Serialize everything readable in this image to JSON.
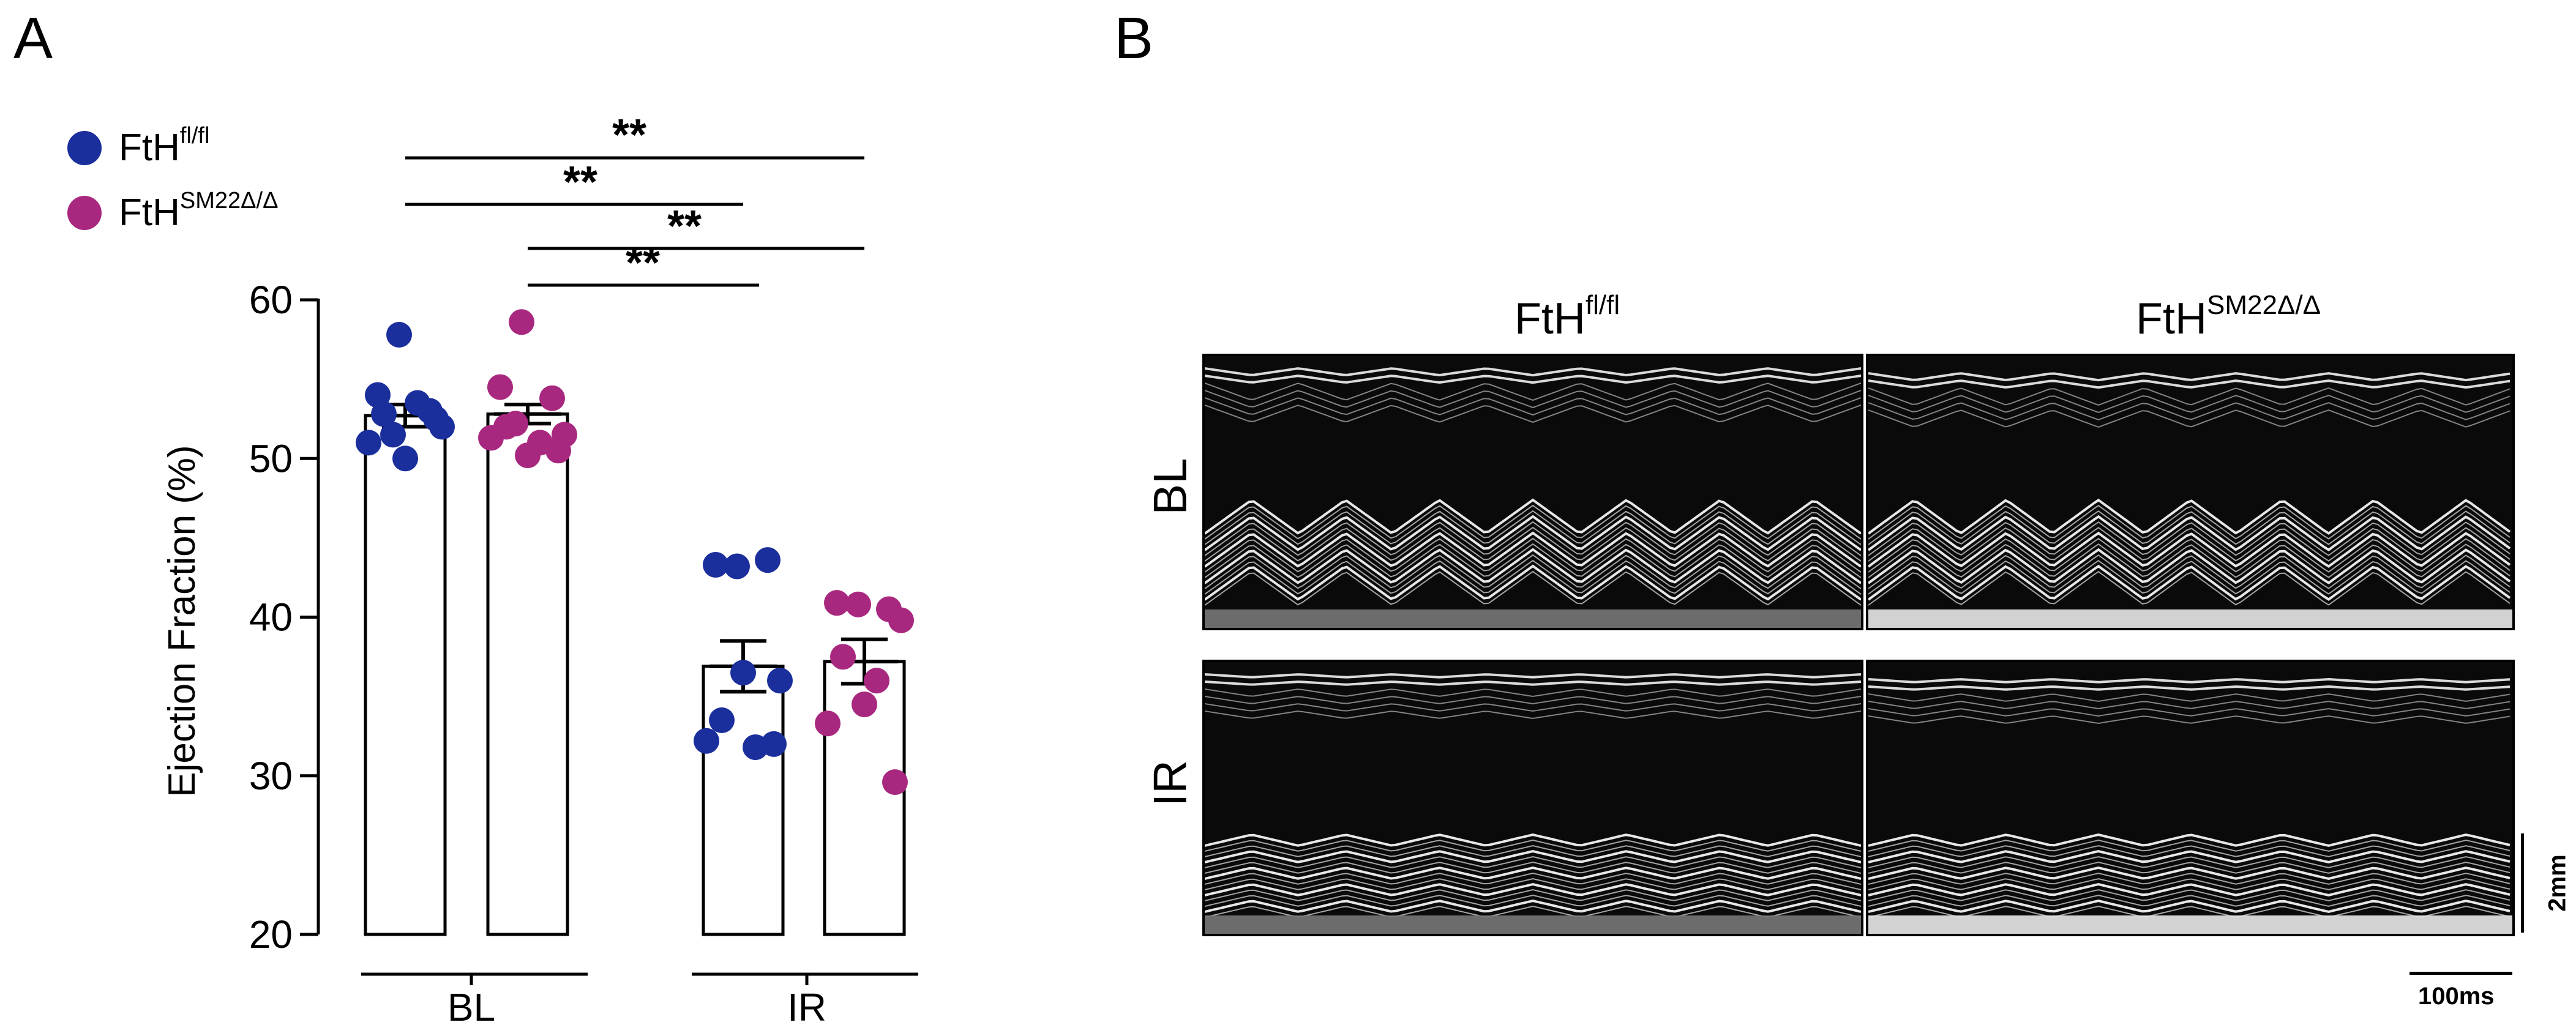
{
  "panel_a": {
    "letter": "A"
  },
  "panel_b": {
    "letter": "B"
  },
  "legend": [
    {
      "base": "FtH",
      "sup": "fl/fl",
      "color": "#1a2e9c"
    },
    {
      "base": "FtH",
      "sup": "SM22Δ/Δ",
      "color": "#a8287f"
    }
  ],
  "chart_data": {
    "type": "bar",
    "ylabel": "Ejection Fraction (%)",
    "ylim": [
      20,
      60
    ],
    "yticks": [
      "20",
      "30",
      "40",
      "50",
      "60"
    ],
    "groups": [
      "BL",
      "IR"
    ],
    "series": [
      {
        "name": "FtH fl/fl",
        "color": "#1a2e9c",
        "means": [
          52.7,
          36.9
        ],
        "sem": [
          0.7,
          1.6
        ],
        "points": [
          [
            57.8,
            54.0,
            53.0,
            52.0,
            52.8,
            53.5,
            51.0,
            50.0,
            52.5,
            51.5
          ],
          [
            43.2,
            43.3,
            43.6,
            36.0,
            33.5,
            31.8,
            32.2,
            36.5,
            32.0
          ]
        ]
      },
      {
        "name": "FtH SM22Δ/Δ",
        "color": "#a8287f",
        "means": [
          52.8,
          37.2
        ],
        "sem": [
          0.6,
          1.4
        ],
        "points": [
          [
            58.6,
            54.5,
            53.8,
            51.5,
            52.0,
            51.0,
            51.3,
            50.2,
            50.5,
            52.2
          ],
          [
            40.8,
            40.9,
            40.5,
            39.8,
            37.5,
            36.0,
            33.3,
            34.5,
            29.6
          ]
        ]
      }
    ],
    "significance": [
      {
        "label": "**"
      },
      {
        "label": "**"
      },
      {
        "label": "**"
      },
      {
        "label": "**"
      }
    ]
  },
  "echo": {
    "columns": [
      {
        "base": "FtH",
        "sup": "fl/fl"
      },
      {
        "base": "FtH",
        "sup": "SM22Δ/Δ"
      }
    ],
    "rows": [
      "BL",
      "IR"
    ],
    "scale_vertical": "2mm",
    "scale_horizontal": "100ms"
  }
}
